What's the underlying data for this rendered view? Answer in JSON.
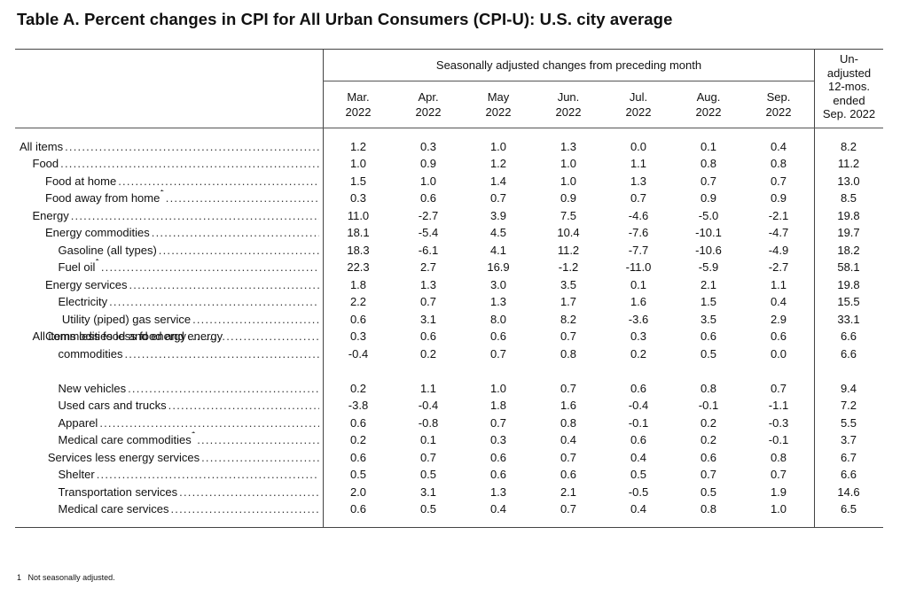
{
  "title": "Table A. Percent changes in CPI for All Urban Consumers (CPI-U): U.S. city average",
  "group_header": "Seasonally adjusted changes from preceding month",
  "columns": [
    {
      "line1": "Mar.",
      "line2": "2022"
    },
    {
      "line1": "Apr.",
      "line2": "2022"
    },
    {
      "line1": "May",
      "line2": "2022"
    },
    {
      "line1": "Jun.",
      "line2": "2022"
    },
    {
      "line1": "Jul.",
      "line2": "2022"
    },
    {
      "line1": "Aug.",
      "line2": "2022"
    },
    {
      "line1": "Sep.",
      "line2": "2022"
    }
  ],
  "unadjusted_header": [
    "Un-",
    "adjusted",
    "12-mos.",
    "ended",
    "Sep. 2022"
  ],
  "rows": [
    {
      "label": "All items",
      "sup": "",
      "indent": 0,
      "values": [
        "1.2",
        "0.3",
        "1.0",
        "1.3",
        "0.0",
        "0.1",
        "0.4",
        "8.2"
      ]
    },
    {
      "label": "Food",
      "sup": "",
      "indent": 1,
      "values": [
        "1.0",
        "0.9",
        "1.2",
        "1.0",
        "1.1",
        "0.8",
        "0.8",
        "11.2"
      ]
    },
    {
      "label": "Food at home",
      "sup": "",
      "indent": 2,
      "values": [
        "1.5",
        "1.0",
        "1.4",
        "1.0",
        "1.3",
        "0.7",
        "0.7",
        "13.0"
      ]
    },
    {
      "label": "Food away from home",
      "sup": "1",
      "indent": 2,
      "values": [
        "0.3",
        "0.6",
        "0.7",
        "0.9",
        "0.7",
        "0.9",
        "0.9",
        "8.5"
      ]
    },
    {
      "label": "Energy",
      "sup": "",
      "indent": 1,
      "values": [
        "11.0",
        "-2.7",
        "3.9",
        "7.5",
        "-4.6",
        "-5.0",
        "-2.1",
        "19.8"
      ]
    },
    {
      "label": "Energy commodities",
      "sup": "",
      "indent": 2,
      "values": [
        "18.1",
        "-5.4",
        "4.5",
        "10.4",
        "-7.6",
        "-10.1",
        "-4.7",
        "19.7"
      ]
    },
    {
      "label": "Gasoline (all types)",
      "sup": "",
      "indent": 3,
      "values": [
        "18.3",
        "-6.1",
        "4.1",
        "11.2",
        "-7.7",
        "-10.6",
        "-4.9",
        "18.2"
      ]
    },
    {
      "label": "Fuel oil",
      "sup": "1",
      "indent": 3,
      "values": [
        "22.3",
        "2.7",
        "16.9",
        "-1.2",
        "-11.0",
        "-5.9",
        "-2.7",
        "58.1"
      ]
    },
    {
      "label": "Energy services",
      "sup": "",
      "indent": 2,
      "values": [
        "1.8",
        "1.3",
        "3.0",
        "3.5",
        "0.1",
        "2.1",
        "1.1",
        "19.8"
      ]
    },
    {
      "label": "Electricity",
      "sup": "",
      "indent": 3,
      "values": [
        "2.2",
        "0.7",
        "1.3",
        "1.7",
        "1.6",
        "1.5",
        "0.4",
        "15.5"
      ]
    },
    {
      "label": "Utility (piped) gas service",
      "sup": "",
      "indent": 3.3,
      "values": [
        "0.6",
        "3.1",
        "8.0",
        "8.2",
        "-3.6",
        "3.5",
        "2.9",
        "33.1"
      ]
    },
    {
      "label": "All items less food and energy",
      "sup": "",
      "indent": 1,
      "values": [
        "0.3",
        "0.6",
        "0.6",
        "0.7",
        "0.3",
        "0.6",
        "0.6",
        "6.6"
      ]
    },
    {
      "label": "Commodities less food and energy",
      "label2": "commodities",
      "sup": "",
      "indent": 2,
      "values": [
        "-0.4",
        "0.2",
        "0.7",
        "0.8",
        "0.2",
        "0.5",
        "0.0",
        "6.6"
      ]
    },
    {
      "label": "New vehicles",
      "sup": "",
      "indent": 3,
      "values": [
        "0.2",
        "1.1",
        "1.0",
        "0.7",
        "0.6",
        "0.8",
        "0.7",
        "9.4"
      ]
    },
    {
      "label": "Used cars and trucks",
      "sup": "",
      "indent": 3,
      "values": [
        "-3.8",
        "-0.4",
        "1.8",
        "1.6",
        "-0.4",
        "-0.1",
        "-1.1",
        "7.2"
      ]
    },
    {
      "label": "Apparel",
      "sup": "",
      "indent": 3,
      "values": [
        "0.6",
        "-0.8",
        "0.7",
        "0.8",
        "-0.1",
        "0.2",
        "-0.3",
        "5.5"
      ]
    },
    {
      "label": "Medical care commodities",
      "sup": "1",
      "indent": 3,
      "values": [
        "0.2",
        "0.1",
        "0.3",
        "0.4",
        "0.6",
        "0.2",
        "-0.1",
        "3.7"
      ]
    },
    {
      "label": "Services less energy services",
      "sup": "",
      "indent": 2.2,
      "values": [
        "0.6",
        "0.7",
        "0.6",
        "0.7",
        "0.4",
        "0.6",
        "0.8",
        "6.7"
      ]
    },
    {
      "label": "Shelter",
      "sup": "",
      "indent": 3,
      "values": [
        "0.5",
        "0.5",
        "0.6",
        "0.6",
        "0.5",
        "0.7",
        "0.7",
        "6.6"
      ]
    },
    {
      "label": "Transportation services",
      "sup": "",
      "indent": 3,
      "values": [
        "2.0",
        "3.1",
        "1.3",
        "2.1",
        "-0.5",
        "0.5",
        "1.9",
        "14.6"
      ]
    },
    {
      "label": "Medical care services",
      "sup": "",
      "indent": 3,
      "values": [
        "0.6",
        "0.5",
        "0.4",
        "0.7",
        "0.4",
        "0.8",
        "1.0",
        "6.5"
      ]
    }
  ],
  "footnote_marker": "1",
  "footnote": "Not seasonally adjusted."
}
